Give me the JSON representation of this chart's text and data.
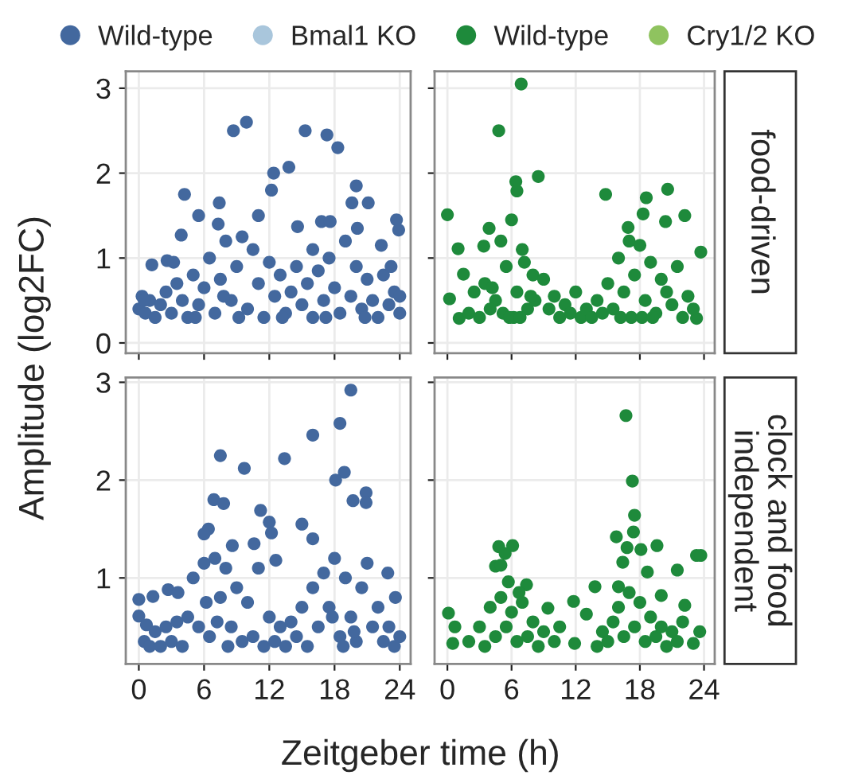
{
  "chart_data": [
    {
      "type": "scatter",
      "ylabel": "Amplitude (log2FC)",
      "legend": "top",
      "grid": true,
      "marker": "circle",
      "tick_labels": "y",
      "xlim": [
        -1.2,
        25
      ],
      "xticks": [
        0,
        6,
        12,
        18,
        24
      ],
      "ylim": [
        -0.12,
        3.2
      ],
      "yticks": [
        0,
        1,
        2,
        3
      ],
      "series": [
        {
          "name": "Wild-type",
          "color": "#43689e",
          "x": [
            8.7,
            9.9,
            15.3,
            17.3,
            18.3,
            12.4,
            12.2,
            13.8,
            20,
            19.6,
            21.1,
            4.2,
            5.5,
            7.4,
            7.3,
            3.9,
            11,
            14.6,
            16.8,
            17.6,
            23.7,
            23.9,
            20.1,
            22.3,
            16,
            1.2,
            2.6,
            0,
            0.3,
            0.6,
            1,
            1.5,
            2,
            2.5,
            3,
            3.5,
            4,
            4.5,
            5,
            5.5,
            6,
            6.5,
            7,
            7.5,
            8,
            8.5,
            9,
            9.5,
            10,
            10.5,
            11,
            11.5,
            12,
            12.5,
            13,
            13.5,
            14,
            14.5,
            15,
            15.5,
            16,
            16.5,
            17,
            17.5,
            18,
            18.5,
            19,
            19.5,
            20,
            20.5,
            21,
            21.5,
            22,
            22.5,
            23,
            23.5,
            24,
            24,
            0.5,
            3.2,
            5.2,
            9.2,
            13.2,
            17.2,
            20.8,
            23.2,
            7.8
          ],
          "values": [
            2.5,
            2.6,
            2.5,
            2.45,
            2.3,
            2.0,
            1.8,
            2.07,
            1.85,
            1.65,
            1.65,
            1.75,
            1.5,
            1.65,
            1.4,
            1.27,
            1.5,
            1.37,
            1.43,
            1.43,
            1.45,
            1.33,
            1.35,
            1.15,
            1.1,
            0.92,
            0.97,
            0.4,
            0.55,
            0.35,
            0.5,
            0.3,
            0.45,
            0.6,
            0.35,
            0.7,
            0.5,
            0.3,
            0.8,
            0.45,
            0.65,
            1.0,
            0.35,
            0.75,
            1.2,
            0.5,
            0.9,
            1.25,
            0.4,
            1.1,
            0.7,
            0.3,
            0.95,
            0.55,
            0.8,
            0.35,
            0.6,
            0.9,
            0.45,
            0.7,
            0.3,
            0.85,
            0.5,
            1.0,
            0.65,
            0.35,
            1.2,
            0.55,
            0.9,
            0.4,
            0.75,
            0.5,
            0.3,
            0.8,
            0.45,
            0.6,
            0.35,
            0.55,
            0.5,
            0.95,
            0.3,
            0.3,
            0.3,
            0.3,
            0.3,
            0.9,
            0.55
          ]
        },
        {
          "name": "Bmal1 KO",
          "color": "#a9c6dc"
        }
      ]
    },
    {
      "type": "scatter",
      "legend": "top",
      "grid": true,
      "marker": "circle",
      "tick_labels": false,
      "xlim": [
        -1.2,
        25
      ],
      "xticks": [
        0,
        6,
        12,
        18,
        24
      ],
      "ylim": [
        -0.12,
        3.2
      ],
      "yticks": [
        0,
        1,
        2,
        3
      ],
      "annotations": [
        "food-driven"
      ],
      "series": [
        {
          "name": "Wild-type",
          "color": "#1e8a3b",
          "x": [
            6.9,
            4.8,
            8.5,
            6.4,
            6.5,
            0,
            14.8,
            18.6,
            20.6,
            22.2,
            20.4,
            18.3,
            16.9,
            3.9,
            3.4,
            1.0,
            1.5,
            0.2,
            1.1,
            23.7,
            23.3,
            5,
            5.5,
            6,
            6.5,
            7,
            7.5,
            8,
            4.5,
            5.2,
            6.2,
            7.2,
            8.2,
            9,
            9.5,
            10,
            10.5,
            11,
            11.5,
            12,
            12.5,
            13,
            13.5,
            14,
            14.5,
            15,
            15.5,
            16,
            16.5,
            17,
            17.5,
            18,
            18.5,
            19,
            19.5,
            20,
            20.5,
            21,
            21.5,
            22,
            22.5,
            23,
            2,
            2.5,
            3,
            3.5,
            4,
            5.8,
            6.8,
            17.2,
            18.2,
            19.2,
            16.2,
            4.2,
            7.8
          ],
          "values": [
            3.05,
            2.5,
            1.96,
            1.9,
            1.79,
            1.51,
            1.75,
            1.71,
            1.81,
            1.5,
            1.43,
            1.52,
            1.36,
            1.35,
            1.14,
            1.11,
            0.81,
            0.52,
            0.29,
            1.07,
            0.29,
            1.2,
            0.9,
            1.45,
            0.6,
            1.1,
            0.4,
            0.8,
            0.5,
            0.35,
            0.3,
            0.95,
            0.5,
            0.75,
            0.4,
            0.55,
            0.3,
            0.45,
            0.35,
            0.6,
            0.3,
            0.4,
            0.3,
            0.5,
            0.35,
            0.7,
            0.4,
            1.0,
            0.6,
            1.2,
            0.8,
            1.15,
            0.5,
            0.95,
            0.35,
            0.75,
            0.6,
            0.45,
            0.9,
            0.3,
            0.55,
            0.4,
            0.35,
            0.6,
            0.3,
            0.7,
            0.4,
            0.3,
            0.3,
            0.3,
            0.3,
            0.3,
            0.3,
            0.65,
            0.55
          ]
        },
        {
          "name": "Cry1/2 KO",
          "color": "#8fc35f"
        }
      ]
    },
    {
      "type": "scatter",
      "xlabel": "Zeitgeber time (h)",
      "grid": true,
      "marker": "circle",
      "xlim": [
        -1.2,
        25
      ],
      "xticks": [
        0,
        6,
        12,
        18,
        24
      ],
      "ylim": [
        0.12,
        3.05
      ],
      "yticks": [
        1,
        2,
        3
      ],
      "series": [
        {
          "color": "#43689e",
          "x": [
            19.5,
            18.5,
            16.0,
            7.5,
            9.7,
            13.4,
            18.9,
            18.1,
            20.9,
            19.7,
            20.9,
            6.9,
            7.8,
            11.2,
            12.0,
            12.2,
            15.0,
            16.0,
            6.4,
            6.0,
            8.6,
            10.6,
            12.6,
            22.9,
            0,
            0,
            0.7,
            1.3,
            2.7,
            3.6,
            23.6,
            0.5,
            1,
            1.5,
            2,
            2.5,
            3,
            3.5,
            4,
            4.5,
            5,
            5.5,
            6,
            6.5,
            7,
            7.5,
            8,
            8.5,
            9,
            9.5,
            10,
            10.5,
            11,
            11.5,
            12,
            12.5,
            13,
            13.5,
            14,
            14.5,
            15,
            15.5,
            16,
            16.5,
            17,
            17.5,
            18,
            18.5,
            19,
            19.5,
            20,
            20.5,
            21,
            21.5,
            22,
            22.5,
            23,
            23.5,
            24,
            6.2,
            7.2,
            8.2,
            17.8,
            18.8,
            19.8
          ],
          "values": [
            2.92,
            2.58,
            2.46,
            2.25,
            2.12,
            2.22,
            2.08,
            2.0,
            1.87,
            1.79,
            1.77,
            1.8,
            1.76,
            1.69,
            1.57,
            1.46,
            1.55,
            1.4,
            1.5,
            1.45,
            1.33,
            1.35,
            1.18,
            1.05,
            0.78,
            0.61,
            0.52,
            0.81,
            0.88,
            0.85,
            0.8,
            0.35,
            0.3,
            0.45,
            0.3,
            0.5,
            0.35,
            0.55,
            0.3,
            0.6,
            1.0,
            0.5,
            1.15,
            0.4,
            1.2,
            0.8,
            1.1,
            0.5,
            0.9,
            0.35,
            0.75,
            0.4,
            1.1,
            0.3,
            0.6,
            0.35,
            0.5,
            0.3,
            0.55,
            0.4,
            0.7,
            0.3,
            0.9,
            0.5,
            1.05,
            0.7,
            1.2,
            0.4,
            1.0,
            0.6,
            0.35,
            0.9,
            1.15,
            0.5,
            0.7,
            0.35,
            0.5,
            0.3,
            0.4,
            0.75,
            0.55,
            0.3,
            0.6,
            0.3,
            0.45
          ]
        }
      ]
    },
    {
      "type": "scatter",
      "grid": true,
      "marker": "circle",
      "tick_labels": "x",
      "xlim": [
        -1.2,
        25
      ],
      "xticks": [
        0,
        6,
        12,
        18,
        24
      ],
      "ylim": [
        0.12,
        3.05
      ],
      "yticks": [
        1,
        2,
        3
      ],
      "annotations": [
        "clock and food\nindependent"
      ],
      "series": [
        {
          "color": "#1e8a3b",
          "x": [
            16.7,
            17.3,
            17.5,
            17.4,
            15.8,
            16.8,
            18.1,
            19.6,
            16.4,
            18.7,
            21.5,
            23.3,
            23.7,
            4.8,
            6.1,
            5.4,
            4.5,
            5.0,
            5.7,
            7.4,
            6.7,
            0.1,
            0.7,
            0.5,
            13.8,
            16.0,
            20.0,
            22.2,
            9.4,
            11.8,
            13.0,
            11.9,
            23.0,
            23.6,
            2,
            3,
            3.5,
            4,
            4.5,
            5,
            5.5,
            6,
            6.5,
            7,
            7.5,
            8,
            8.5,
            9,
            10,
            10.5,
            14,
            14.5,
            15,
            15.5,
            16,
            16.5,
            17,
            17.5,
            18,
            18.5,
            19,
            19.5,
            20,
            20.5,
            21,
            21.5,
            22
          ],
          "values": [
            2.66,
            1.99,
            1.64,
            1.47,
            1.42,
            1.31,
            1.29,
            1.33,
            1.16,
            1.06,
            1.08,
            1.23,
            1.23,
            1.32,
            1.33,
            1.25,
            1.12,
            1.13,
            0.96,
            0.93,
            0.85,
            0.64,
            0.5,
            0.33,
            0.91,
            0.91,
            0.82,
            0.72,
            0.69,
            0.76,
            0.63,
            0.33,
            0.33,
            0.45,
            0.35,
            0.5,
            0.3,
            0.7,
            0.4,
            0.8,
            0.5,
            0.65,
            0.35,
            0.75,
            0.4,
            0.55,
            0.3,
            0.45,
            0.35,
            0.5,
            0.3,
            0.45,
            0.35,
            0.55,
            0.7,
            0.4,
            0.85,
            0.5,
            0.75,
            0.35,
            0.6,
            0.4,
            0.5,
            0.3,
            0.45,
            0.35,
            0.55
          ]
        }
      ]
    }
  ]
}
